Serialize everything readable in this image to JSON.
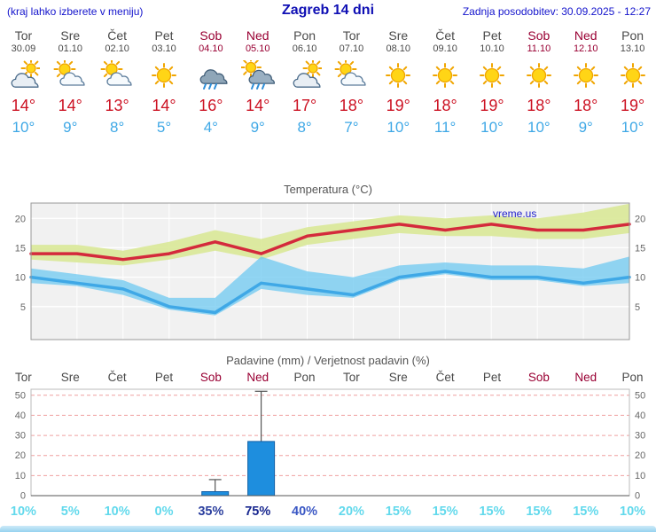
{
  "header": {
    "location_hint": "(kraj lahko izberete v meniju)",
    "title": "Zagreb 14 dni",
    "last_updated": "Zadnja posodobitev: 30.09.2025 - 12:27"
  },
  "days": [
    {
      "name": "Tor",
      "date": "30.09",
      "weekend": false,
      "icon": "mostly-cloudy",
      "high": "14°",
      "low": "10°"
    },
    {
      "name": "Sre",
      "date": "01.10",
      "weekend": false,
      "icon": "partly",
      "high": "14°",
      "low": "9°"
    },
    {
      "name": "Čet",
      "date": "02.10",
      "weekend": false,
      "icon": "partly",
      "high": "13°",
      "low": "8°"
    },
    {
      "name": "Pet",
      "date": "03.10",
      "weekend": false,
      "icon": "sunny",
      "high": "14°",
      "low": "5°"
    },
    {
      "name": "Sob",
      "date": "04.10",
      "weekend": true,
      "icon": "rain",
      "high": "16°",
      "low": "4°"
    },
    {
      "name": "Ned",
      "date": "05.10",
      "weekend": true,
      "icon": "rain-sun",
      "high": "14°",
      "low": "9°"
    },
    {
      "name": "Pon",
      "date": "06.10",
      "weekend": false,
      "icon": "mostly-cloudy",
      "high": "17°",
      "low": "8°"
    },
    {
      "name": "Tor",
      "date": "07.10",
      "weekend": false,
      "icon": "partly",
      "high": "18°",
      "low": "7°"
    },
    {
      "name": "Sre",
      "date": "08.10",
      "weekend": false,
      "icon": "sunny",
      "high": "19°",
      "low": "10°"
    },
    {
      "name": "Čet",
      "date": "09.10",
      "weekend": false,
      "icon": "sunny",
      "high": "18°",
      "low": "11°"
    },
    {
      "name": "Pet",
      "date": "10.10",
      "weekend": false,
      "icon": "sunny",
      "high": "19°",
      "low": "10°"
    },
    {
      "name": "Sob",
      "date": "11.10",
      "weekend": true,
      "icon": "sunny",
      "high": "18°",
      "low": "10°"
    },
    {
      "name": "Ned",
      "date": "12.10",
      "weekend": true,
      "icon": "sunny",
      "high": "18°",
      "low": "9°"
    },
    {
      "name": "Pon",
      "date": "13.10",
      "weekend": false,
      "icon": "sunny",
      "high": "19°",
      "low": "10°"
    }
  ],
  "chart_data": [
    {
      "type": "line",
      "title": "Temperatura (°C)",
      "watermark": "vreme.us",
      "x_labels": [
        "Tor",
        "Sre",
        "Čet",
        "Pet",
        "Sob",
        "Ned",
        "Pon",
        "Tor",
        "Sre",
        "Čet",
        "Pet",
        "Sob",
        "Ned",
        "Pon"
      ],
      "ylim": [
        -0.6,
        22.6
      ],
      "yticks": [
        5,
        10,
        15,
        20
      ],
      "grid": true,
      "legend_position": "none",
      "series": [
        {
          "name": "high",
          "values": [
            14,
            14,
            13,
            14,
            16,
            14,
            17,
            18,
            19,
            18,
            19,
            18,
            18,
            19
          ]
        },
        {
          "name": "low",
          "values": [
            10,
            9,
            8,
            5,
            4,
            9,
            8,
            7,
            10,
            11,
            10,
            10,
            9,
            10
          ]
        },
        {
          "name": "high_band_upper",
          "values": [
            15.5,
            15.5,
            14.5,
            16,
            18,
            16.5,
            18.5,
            19.5,
            20.5,
            20,
            20.5,
            20,
            21,
            22.5
          ]
        },
        {
          "name": "high_band_lower",
          "values": [
            13,
            12.5,
            12,
            13,
            14.5,
            13,
            15.5,
            16.5,
            17.5,
            17,
            17,
            16.5,
            16.5,
            17.5
          ]
        },
        {
          "name": "low_band_upper",
          "values": [
            11.5,
            10.5,
            9.5,
            6.5,
            6.5,
            13.5,
            11,
            10,
            12,
            12.5,
            12,
            12,
            11.5,
            13.5
          ]
        },
        {
          "name": "low_band_lower",
          "values": [
            9,
            8.5,
            7,
            4.5,
            3.5,
            8,
            7,
            6.5,
            9.5,
            10.5,
            9.5,
            9.5,
            8.5,
            9
          ]
        }
      ]
    },
    {
      "type": "bar",
      "title": "Padavine (mm) / Verjetnost padavin (%)",
      "categories": [
        "Tor",
        "Sre",
        "Čet",
        "Pet",
        "Sob",
        "Ned",
        "Pon",
        "Tor",
        "Sre",
        "Čet",
        "Pet",
        "Sob",
        "Ned",
        "Pon"
      ],
      "weekend_indices": [
        4,
        5,
        11,
        12
      ],
      "precipitation_mm": [
        0,
        0,
        0,
        0,
        2,
        27,
        0,
        0,
        0,
        0,
        0,
        0,
        0,
        0
      ],
      "precipitation_max_mm": [
        0,
        0,
        0,
        0,
        8,
        52,
        0,
        0,
        0,
        0,
        0,
        0,
        0,
        0
      ],
      "probabilities": [
        {
          "label": "10%",
          "color": "#62d9ec"
        },
        {
          "label": "5%",
          "color": "#62d9ec"
        },
        {
          "label": "10%",
          "color": "#62d9ec"
        },
        {
          "label": "0%",
          "color": "#62d9ec"
        },
        {
          "label": "35%",
          "color": "#2b3f9e"
        },
        {
          "label": "75%",
          "color": "#18278f"
        },
        {
          "label": "40%",
          "color": "#3a57c4"
        },
        {
          "label": "20%",
          "color": "#62d9ec"
        },
        {
          "label": "15%",
          "color": "#62d9ec"
        },
        {
          "label": "15%",
          "color": "#62d9ec"
        },
        {
          "label": "15%",
          "color": "#62d9ec"
        },
        {
          "label": "15%",
          "color": "#62d9ec"
        },
        {
          "label": "15%",
          "color": "#62d9ec"
        },
        {
          "label": "10%",
          "color": "#62d9ec"
        }
      ],
      "ylim": [
        0,
        53
      ],
      "yticks": [
        0,
        10,
        20,
        30,
        40,
        50
      ],
      "grid": "dashed"
    }
  ],
  "colors": {
    "header_text": "#1414cc",
    "title_text": "#0f0fb4",
    "weekday_text": "#4a4a4a",
    "weekend_text": "#990033",
    "high_temp": "#cc1122",
    "low_temp": "#3fa8e6",
    "temp_line_high": "#d42a3c",
    "temp_line_low": "#3fa8e6",
    "temp_band_high": "#d9e897",
    "temp_band_low": "#6ec8f0",
    "precip_bar": "#1e8ede",
    "grid_dashed": "#efa0a0"
  }
}
